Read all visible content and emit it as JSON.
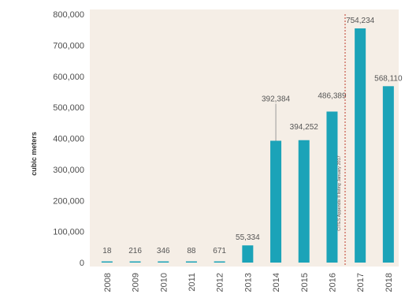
{
  "chart_data": {
    "type": "bar",
    "categories": [
      "2008",
      "2009",
      "2010",
      "2011",
      "2012",
      "2013",
      "2014",
      "2015",
      "2016",
      "2017",
      "2018"
    ],
    "values": [
      18,
      216,
      346,
      88,
      671,
      55334,
      392384,
      394252,
      486389,
      754234,
      568110
    ],
    "value_labels": [
      "18",
      "216",
      "346",
      "88",
      "671",
      "55,334",
      "392,384",
      "394,252",
      "486,389",
      "754,234",
      "568,110"
    ],
    "ylabel": "cubic meters",
    "ylim": [
      0,
      800000
    ],
    "yticks": [
      0,
      100000,
      200000,
      300000,
      400000,
      500000,
      600000,
      700000,
      800000
    ],
    "ytick_labels": [
      "0",
      "100,000",
      "200,000",
      "300,000",
      "400,000",
      "500,000",
      "600,000",
      "700,000",
      "800,000"
    ],
    "annotation": "CITES Appendix II listing January 2017",
    "grid": false,
    "colors": {
      "bar": "#1ba3b8",
      "plot_background": "#f5eee6",
      "divider": "#c0392b"
    }
  }
}
